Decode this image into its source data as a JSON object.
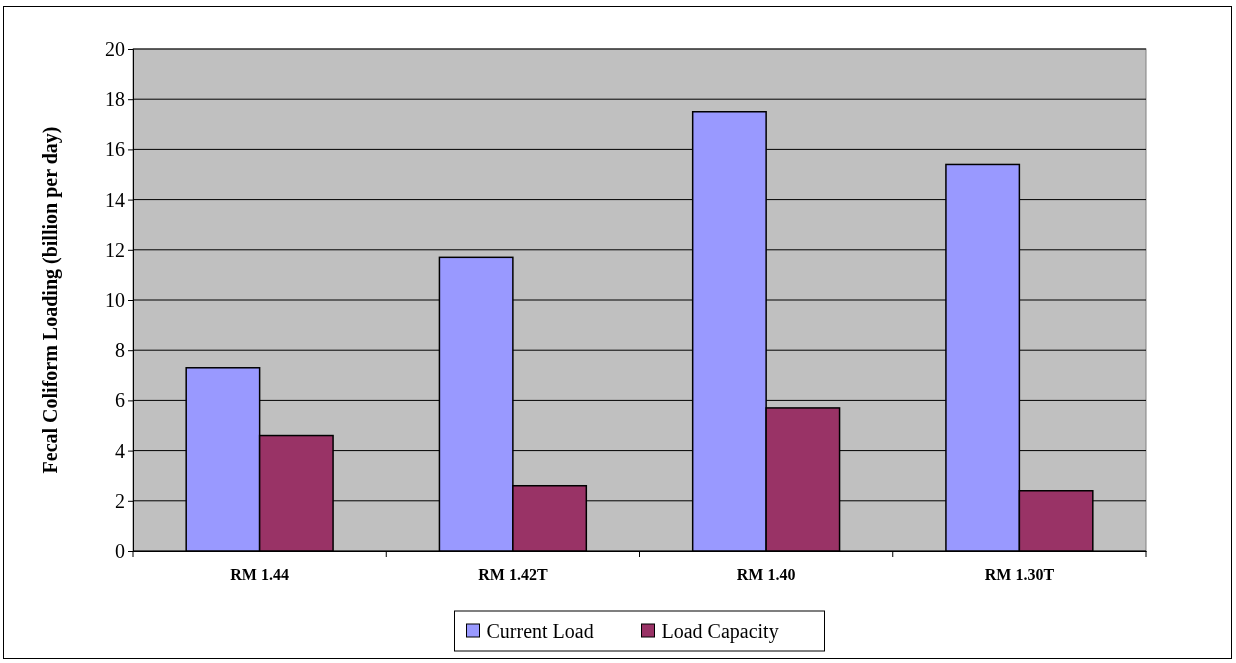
{
  "chart_data": {
    "type": "bar",
    "ylabel": "Fecal Coliform Loading (billion per day)",
    "categories": [
      "RM 1.44",
      "RM 1.42T",
      "RM 1.40",
      "RM 1.30T"
    ],
    "series": [
      {
        "name": "Current Load",
        "color": "#9999ff",
        "values": [
          7.3,
          11.7,
          17.5,
          15.4
        ]
      },
      {
        "name": "Load Capacity",
        "color": "#993366",
        "values": [
          4.6,
          2.6,
          5.7,
          2.4
        ]
      }
    ],
    "ylim": [
      0,
      20
    ],
    "yticks": [
      0,
      2,
      4,
      6,
      8,
      10,
      12,
      14,
      16,
      18,
      20
    ],
    "grid": "y",
    "legend": "bottom"
  }
}
